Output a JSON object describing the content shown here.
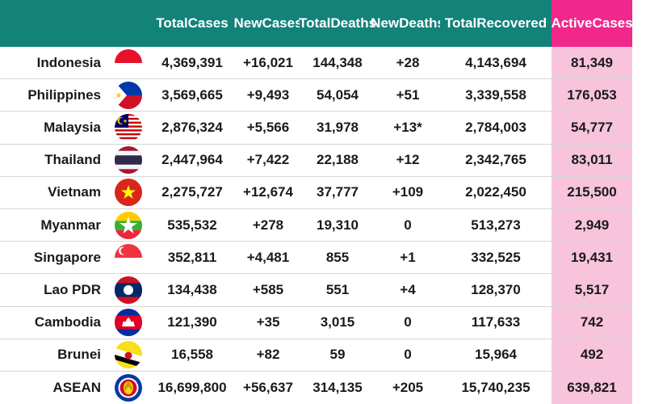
{
  "headers": {
    "total_cases": [
      "Total",
      "Cases"
    ],
    "new_cases": [
      "New",
      "Cases"
    ],
    "total_deaths": [
      "Total",
      "Deaths"
    ],
    "new_deaths": [
      "New",
      "Deaths"
    ],
    "total_recovered": [
      "Total",
      "Recovered"
    ],
    "active_cases": [
      "Active",
      "Cases"
    ]
  },
  "rows": [
    {
      "country": "Indonesia",
      "flag": "indonesia-flag-icon",
      "total_cases": "4,369,391",
      "new_cases": "+16,021",
      "total_deaths": "144,348",
      "new_deaths": "+28",
      "total_recovered": "4,143,694",
      "active_cases": "81,349"
    },
    {
      "country": "Philippines",
      "flag": "philippines-flag-icon",
      "total_cases": "3,569,665",
      "new_cases": "+9,493",
      "total_deaths": "54,054",
      "new_deaths": "+51",
      "total_recovered": "3,339,558",
      "active_cases": "176,053"
    },
    {
      "country": "Malaysia",
      "flag": "malaysia-flag-icon",
      "total_cases": "2,876,324",
      "new_cases": "+5,566",
      "total_deaths": "31,978",
      "new_deaths": "+13*",
      "total_recovered": "2,784,003",
      "active_cases": "54,777"
    },
    {
      "country": "Thailand",
      "flag": "thailand-flag-icon",
      "total_cases": "2,447,964",
      "new_cases": "+7,422",
      "total_deaths": "22,188",
      "new_deaths": "+12",
      "total_recovered": "2,342,765",
      "active_cases": "83,011"
    },
    {
      "country": "Vietnam",
      "flag": "vietnam-flag-icon",
      "total_cases": "2,275,727",
      "new_cases": "+12,674",
      "total_deaths": "37,777",
      "new_deaths": "+109",
      "total_recovered": "2,022,450",
      "active_cases": "215,500"
    },
    {
      "country": "Myanmar",
      "flag": "myanmar-flag-icon",
      "total_cases": "535,532",
      "new_cases": "+278",
      "total_deaths": "19,310",
      "new_deaths": "0",
      "total_recovered": "513,273",
      "active_cases": "2,949"
    },
    {
      "country": "Singapore",
      "flag": "singapore-flag-icon",
      "total_cases": "352,811",
      "new_cases": "+4,481",
      "total_deaths": "855",
      "new_deaths": "+1",
      "total_recovered": "332,525",
      "active_cases": "19,431"
    },
    {
      "country": "Lao PDR",
      "flag": "laos-flag-icon",
      "total_cases": "134,438",
      "new_cases": "+585",
      "total_deaths": "551",
      "new_deaths": "+4",
      "total_recovered": "128,370",
      "active_cases": "5,517"
    },
    {
      "country": "Cambodia",
      "flag": "cambodia-flag-icon",
      "total_cases": "121,390",
      "new_cases": "+35",
      "total_deaths": "3,015",
      "new_deaths": "0",
      "total_recovered": "117,633",
      "active_cases": "742"
    },
    {
      "country": "Brunei",
      "flag": "brunei-flag-icon",
      "total_cases": "16,558",
      "new_cases": "+82",
      "total_deaths": "59",
      "new_deaths": "0",
      "total_recovered": "15,964",
      "active_cases": "492"
    },
    {
      "country": "ASEAN",
      "flag": "asean-emblem-icon",
      "total_cases": "16,699,800",
      "new_cases": "+56,637",
      "total_deaths": "314,135",
      "new_deaths": "+205",
      "total_recovered": "15,740,235",
      "active_cases": "639,821"
    }
  ],
  "colors": {
    "header_bg": "#138279",
    "active_header_bg": "#f0288b",
    "active_cell_bg": "#f7c4dc",
    "text": "#1a1a1a"
  }
}
